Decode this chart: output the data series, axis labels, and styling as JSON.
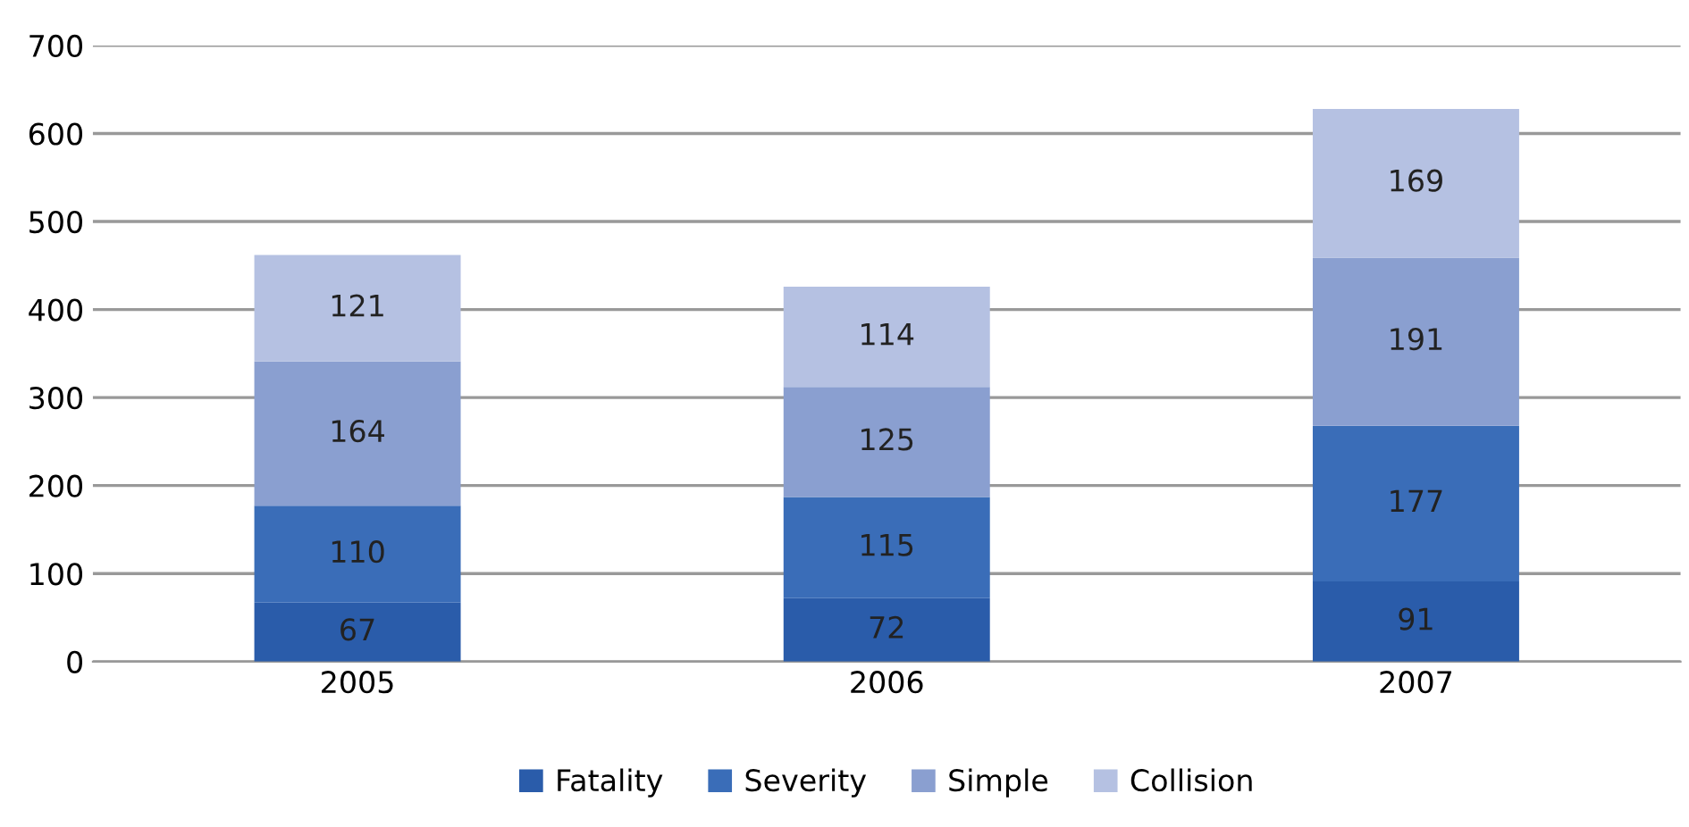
{
  "chart_data": {
    "type": "bar",
    "stacked": true,
    "categories": [
      "2005",
      "2006",
      "2007"
    ],
    "series": [
      {
        "name": "Fatality",
        "color": "#2a5caa",
        "values": [
          67,
          72,
          91
        ]
      },
      {
        "name": "Severity",
        "color": "#3a6db8",
        "values": [
          110,
          115,
          177
        ]
      },
      {
        "name": "Simple",
        "color": "#8a9fd0",
        "values": [
          164,
          125,
          191
        ]
      },
      {
        "name": "Collision",
        "color": "#b5c1e2",
        "values": [
          121,
          114,
          169
        ]
      }
    ],
    "ylim": [
      0,
      700
    ],
    "yticks": [
      0,
      100,
      200,
      300,
      400,
      500,
      600,
      700
    ],
    "grid": "y",
    "legend": "bottom",
    "data_labels": true
  }
}
